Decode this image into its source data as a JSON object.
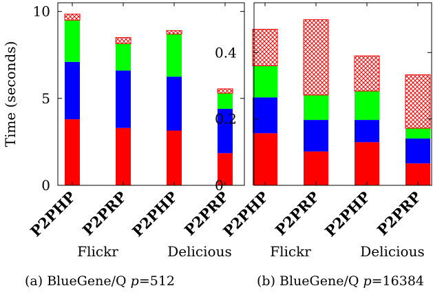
{
  "chart_data": [
    {
      "type": "bar",
      "stacked": true,
      "caption": "(a) BlueGene/Q p=512",
      "ylabel": "Time (seconds)",
      "ylim": [
        0,
        10.5
      ],
      "yticks": [
        0,
        5,
        10
      ],
      "categories": [
        "P2PHP",
        "P2PRP",
        "P2PHP",
        "P2PRP"
      ],
      "groups": [
        {
          "label": "Flickr",
          "span": [
            0,
            1
          ]
        },
        {
          "label": "Delicious",
          "span": [
            2,
            3
          ]
        }
      ],
      "series": [
        {
          "color": "#ff0000",
          "pattern": "solid",
          "values": [
            3.8,
            3.3,
            3.15,
            1.85
          ]
        },
        {
          "color": "#0000ff",
          "pattern": "solid",
          "values": [
            3.3,
            3.3,
            3.1,
            2.55
          ]
        },
        {
          "color": "#00ff00",
          "pattern": "solid",
          "values": [
            2.4,
            1.55,
            2.45,
            0.9
          ]
        },
        {
          "color": "#ff0000",
          "pattern": "crosshatch",
          "values": [
            0.35,
            0.35,
            0.2,
            0.25
          ]
        }
      ],
      "grid": false
    },
    {
      "type": "bar",
      "stacked": true,
      "caption": "(b) BlueGene/Q p=16384",
      "ylabel": "",
      "ylim": [
        0,
        0.55
      ],
      "yticks": [
        0,
        0.2,
        0.4
      ],
      "categories": [
        "P2PHP",
        "P2PRP",
        "P2PHP",
        "P2PRP"
      ],
      "groups": [
        {
          "label": "Flickr",
          "span": [
            0,
            1
          ]
        },
        {
          "label": "Delicious",
          "span": [
            2,
            3
          ]
        }
      ],
      "series": [
        {
          "color": "#ff0000",
          "pattern": "solid",
          "values": [
            0.157,
            0.102,
            0.13,
            0.066
          ]
        },
        {
          "color": "#0000ff",
          "pattern": "solid",
          "values": [
            0.108,
            0.095,
            0.067,
            0.075
          ]
        },
        {
          "color": "#00ff00",
          "pattern": "solid",
          "values": [
            0.095,
            0.075,
            0.087,
            0.031
          ]
        },
        {
          "color": "#ff0000",
          "pattern": "crosshatch",
          "values": [
            0.11,
            0.227,
            0.106,
            0.161
          ]
        }
      ],
      "grid": false
    }
  ]
}
